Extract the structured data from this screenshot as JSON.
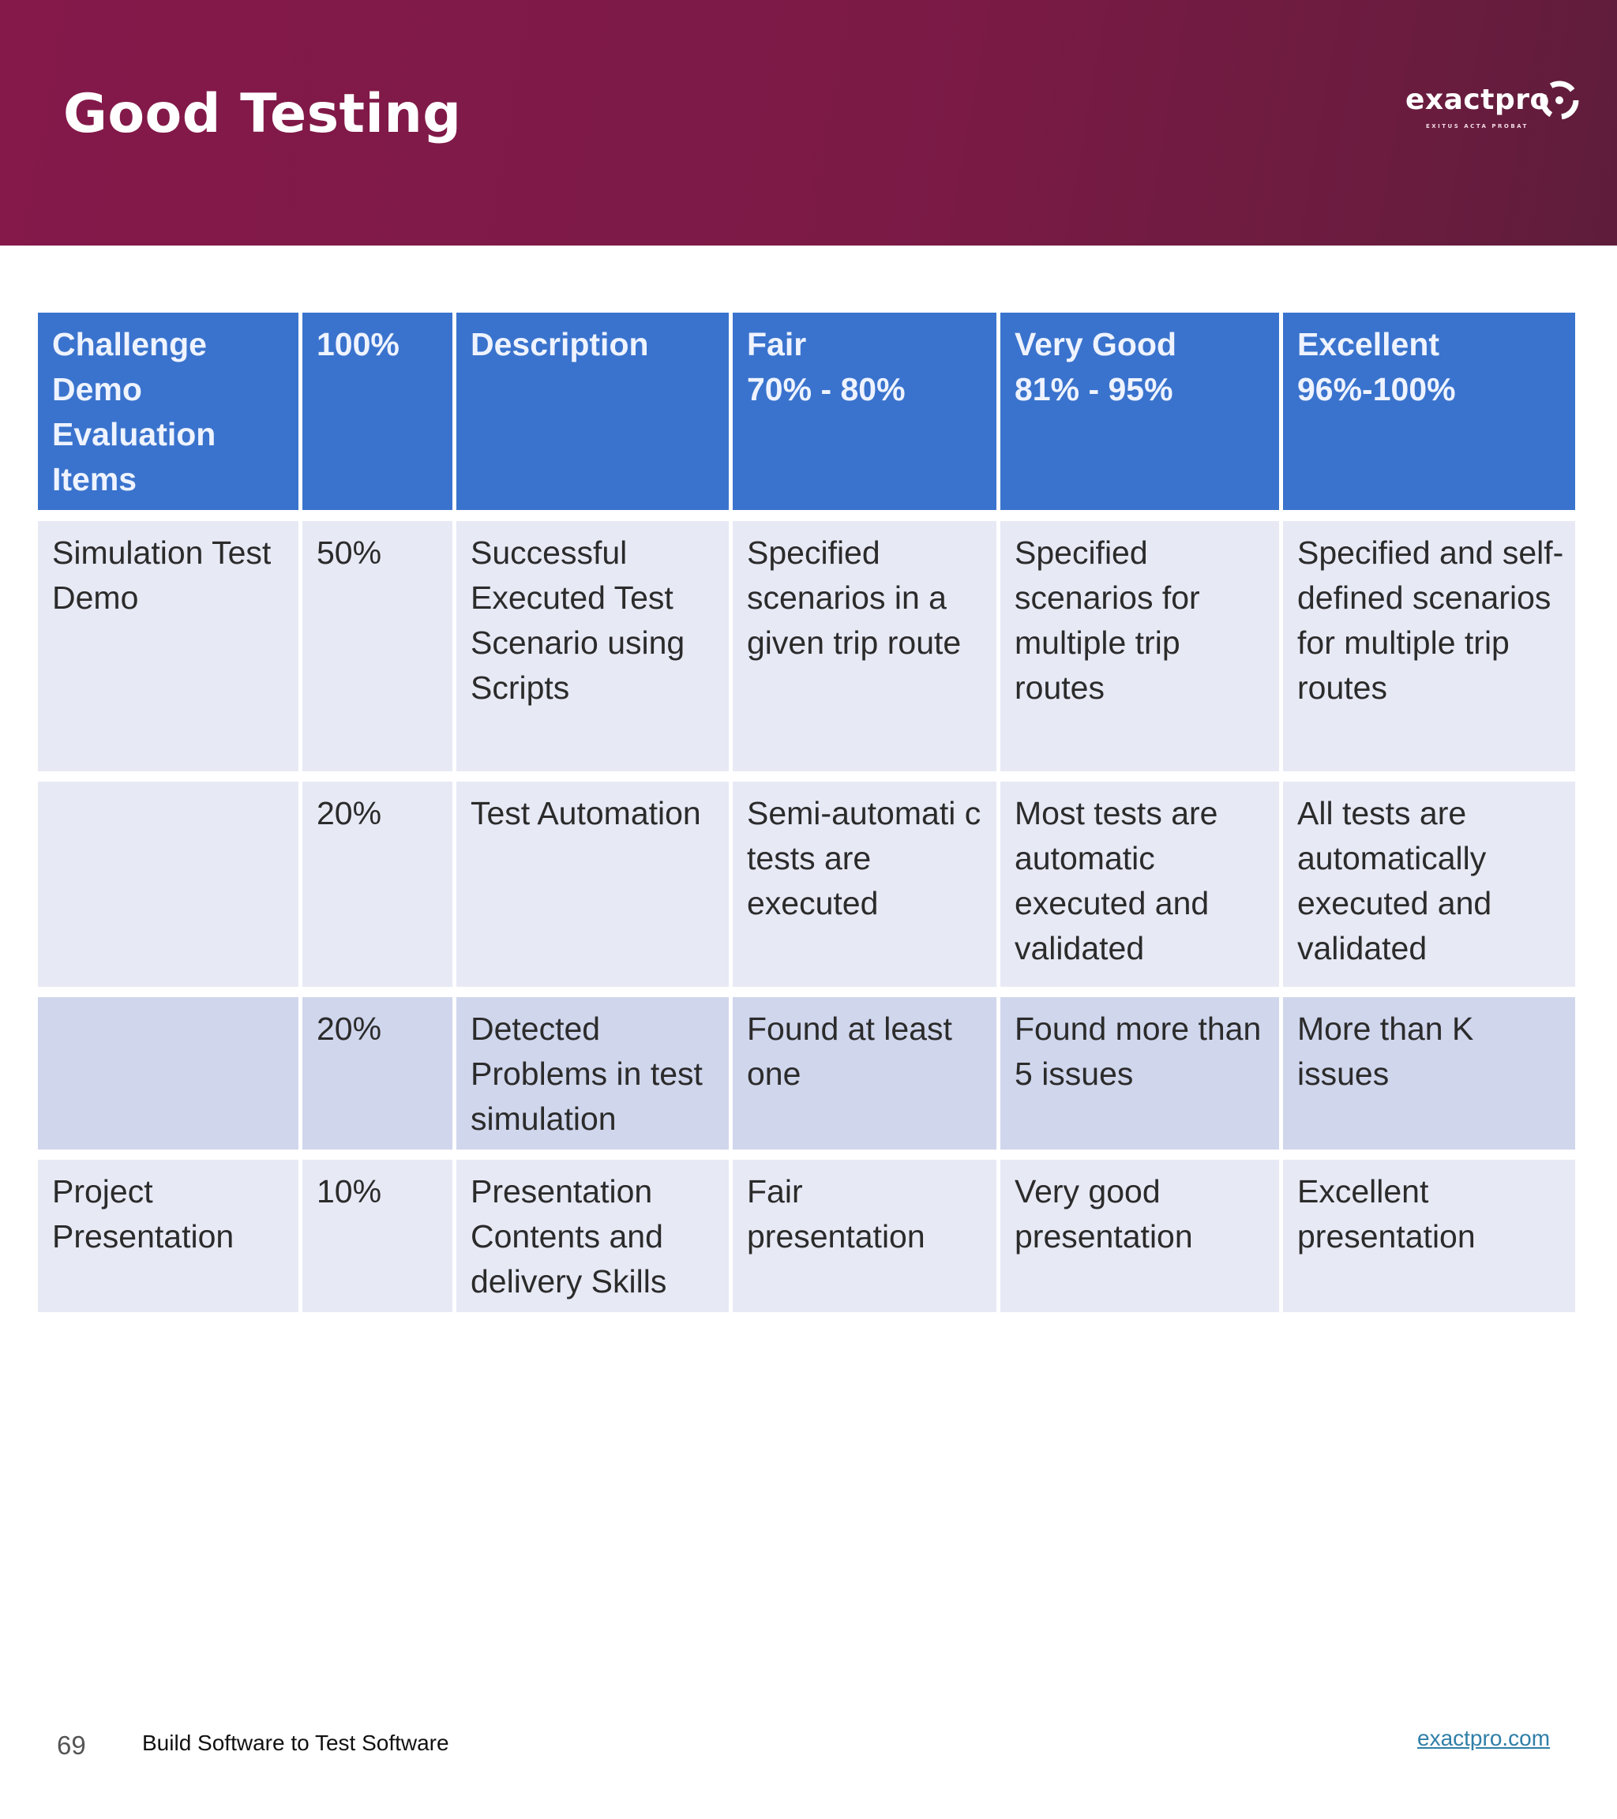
{
  "slide": {
    "title": "Good Testing",
    "page_number": "69",
    "footer_text": "Build Software to Test Software",
    "footer_link": "exactpro.com"
  },
  "logo": {
    "wordmark": "exactpro",
    "tagline": "EXITUS ACTA PROBAT",
    "icon": "exactpro-logo-icon"
  },
  "colors": {
    "banner": "#7c1a46",
    "header_blue": "#3a73cd",
    "row_light": "#e7e9f5",
    "row_dark": "#d0d6ec",
    "link": "#2f7fa8"
  },
  "table": {
    "headers": [
      "Challenge\nDemo\nEvaluation\nItems",
      "100%",
      "Description",
      "Fair\n70% - 80%",
      "Very Good\n81% - 95%",
      "Excellent\n96%-100%"
    ],
    "rows": [
      [
        "Simulation Test Demo",
        "50%",
        "Successful Executed Test Scenario using Scripts",
        "Specified scenarios in a given trip route",
        "Specified scenarios for multiple trip routes",
        "Specified and self-defined scenarios for multiple trip routes"
      ],
      [
        "",
        "20%",
        "Test Automation",
        "Semi-automati c tests are executed",
        "Most tests are automatic executed and validated",
        "All tests are automatically executed and validated"
      ],
      [
        "",
        "20%",
        "Detected Problems in test simulation",
        "Found at least one",
        "Found more than 5 issues",
        "More than K issues"
      ],
      [
        "Project Presentation",
        "10%",
        "Presentation Contents and delivery Skills",
        "Fair presentation",
        "Very good presentation",
        "Excellent presentation"
      ]
    ]
  }
}
